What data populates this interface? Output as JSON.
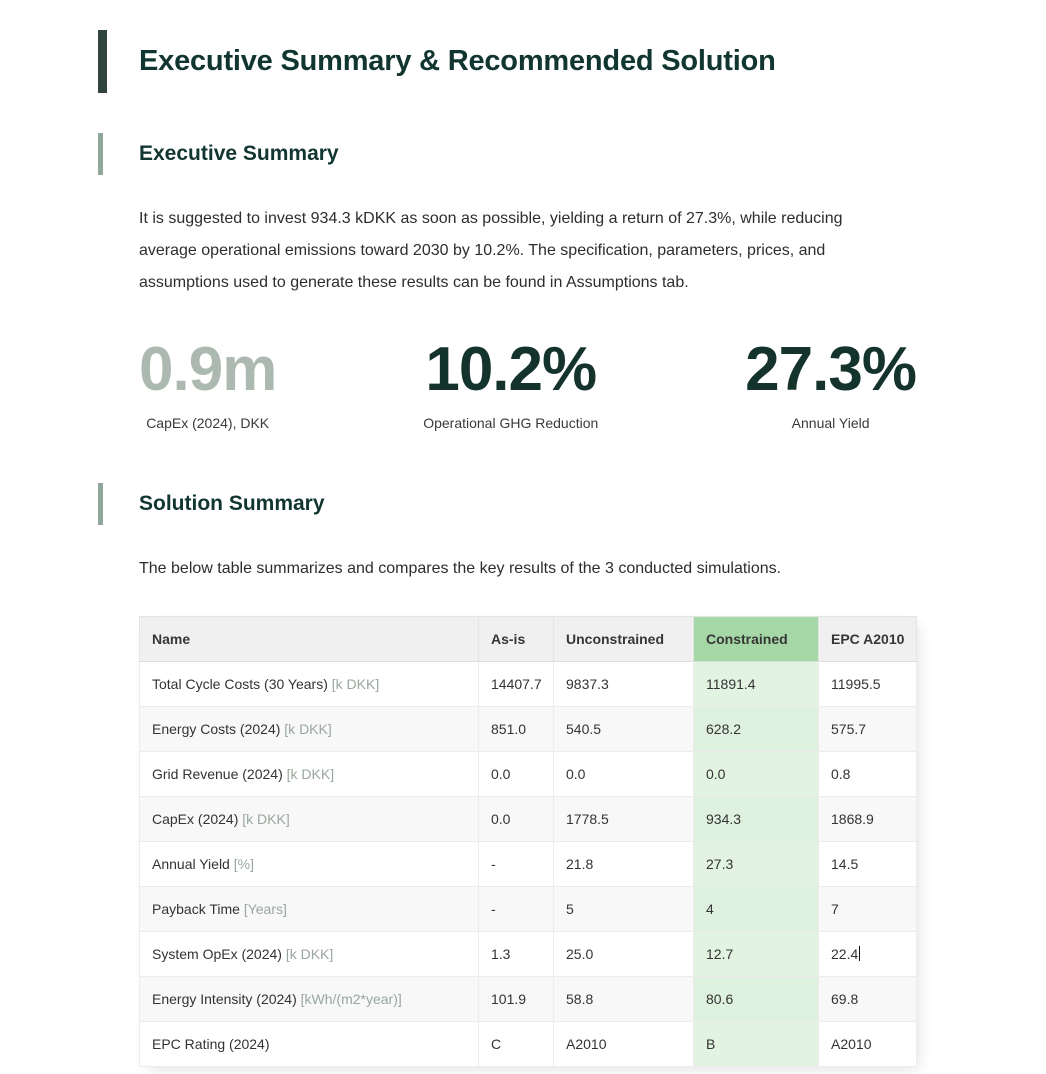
{
  "page": {
    "title": "Executive Summary & Recommended Solution"
  },
  "executive_summary": {
    "heading": "Executive Summary",
    "paragraph": "It is suggested to invest 934.3 kDKK as soon as possible, yielding a return of 27.3%, while reducing average operational emissions toward 2030 by 10.2%. The specification, parameters, prices, and assumptions used to generate these results can be found in Assumptions tab.",
    "metrics": [
      {
        "value": "0.9m",
        "label": "CapEx (2024), DKK"
      },
      {
        "value": "10.2%",
        "label": "Operational GHG Reduction"
      },
      {
        "value": "27.3%",
        "label": "Annual Yield"
      }
    ]
  },
  "solution_summary": {
    "heading": "Solution Summary",
    "paragraph": "The below table summarizes and compares the key results of the 3 conducted simulations.",
    "table": {
      "columns": [
        "Name",
        "As-is",
        "Unconstrained",
        "Constrained",
        "EPC A2010"
      ],
      "highlighted_column": "Constrained",
      "rows": [
        {
          "name": "Total Cycle Costs (30 Years)",
          "unit": "[k DKK]",
          "values": [
            "14407.7",
            "9837.3",
            "11891.4",
            "11995.5"
          ]
        },
        {
          "name": "Energy Costs (2024)",
          "unit": "[k DKK]",
          "values": [
            "851.0",
            "540.5",
            "628.2",
            "575.7"
          ]
        },
        {
          "name": "Grid Revenue (2024)",
          "unit": "[k DKK]",
          "values": [
            "0.0",
            "0.0",
            "0.0",
            "0.8"
          ]
        },
        {
          "name": "CapEx (2024)",
          "unit": "[k DKK]",
          "values": [
            "0.0",
            "1778.5",
            "934.3",
            "1868.9"
          ]
        },
        {
          "name": "Annual Yield",
          "unit": "[%]",
          "values": [
            "-",
            "21.8",
            "27.3",
            "14.5"
          ]
        },
        {
          "name": "Payback Time",
          "unit": "[Years]",
          "values": [
            "-",
            "5",
            "4",
            "7"
          ]
        },
        {
          "name": "System OpEx (2024)",
          "unit": "[k DKK]",
          "values": [
            "1.3",
            "25.0",
            "12.7",
            "22.4"
          ],
          "editing_caret": true
        },
        {
          "name": "Energy Intensity (2024)",
          "unit": "[kWh/(m2*year)]",
          "values": [
            "101.9",
            "58.8",
            "80.6",
            "69.8"
          ]
        },
        {
          "name": "EPC Rating (2024)",
          "unit": "",
          "values": [
            "C",
            "A2010",
            "B",
            "A2010"
          ]
        }
      ]
    }
  },
  "colors": {
    "title_text": "#113530",
    "title_accent_bar": "#32453c",
    "section_accent_bar": "#8fa89b",
    "metric_dark": "#14332d",
    "metric_muted": "#abb9b0",
    "table_header_bg": "#f0f0f0",
    "highlight_header_bg": "#a6d7a6",
    "highlight_cell_bg": "#e2f3e2",
    "row_stripe_bg": "#f8f8f8",
    "unit_text": "#99a79d"
  }
}
